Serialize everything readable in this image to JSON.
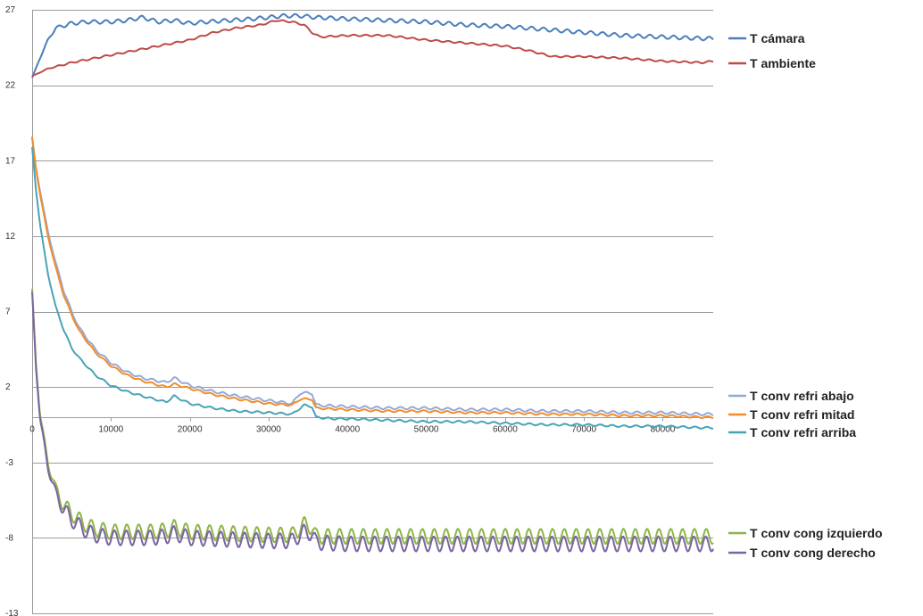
{
  "chart_data": {
    "type": "line",
    "title": "",
    "xlabel": "",
    "ylabel": "",
    "xlim": [
      0,
      86400
    ],
    "ylim": [
      -13,
      27
    ],
    "x_ticks": [
      0,
      10000,
      20000,
      30000,
      40000,
      50000,
      60000,
      70000,
      80000
    ],
    "x_tick_labels": [
      "0",
      "10000",
      "20000",
      "30000",
      "40000",
      "50000",
      "60000",
      "70000",
      "80000"
    ],
    "y_ticks": [
      27,
      22,
      17,
      12,
      7,
      2,
      -3,
      -8,
      -13
    ],
    "y_tick_labels": [
      "27",
      "22",
      "17",
      "12",
      "7",
      "2",
      "-3",
      "-8",
      "-13"
    ],
    "x_axis_at_y": 0,
    "grid": "horizontal",
    "legend_placement": "right",
    "series": [
      {
        "name": "T cámara",
        "color": "#4a7ebb",
        "x": [
          0,
          1000,
          2000,
          3000,
          5000,
          7000,
          10000,
          12000,
          14000,
          16000,
          18000,
          20000,
          22000,
          25000,
          28000,
          30000,
          32000,
          34000,
          36000,
          40000,
          45000,
          50000,
          55000,
          60000,
          65000,
          70000,
          75000,
          80000,
          85000,
          86400
        ],
        "y": [
          22.5,
          23.8,
          25.0,
          25.8,
          26.1,
          26.2,
          26.2,
          26.3,
          26.5,
          26.2,
          26.3,
          26.1,
          26.2,
          26.3,
          26.4,
          26.5,
          26.6,
          26.6,
          26.5,
          26.4,
          26.3,
          26.2,
          26.0,
          25.9,
          25.7,
          25.5,
          25.3,
          25.2,
          25.1,
          25.1
        ],
        "oscillation": 0.12
      },
      {
        "name": "T ambiente",
        "color": "#be4b48",
        "x": [
          0,
          2000,
          5000,
          8000,
          11000,
          14000,
          17000,
          20000,
          23000,
          26000,
          29000,
          31000,
          33000,
          34500,
          35500,
          36500,
          40000,
          45000,
          50000,
          55000,
          60000,
          63000,
          66000,
          70000,
          75000,
          80000,
          85000,
          86400
        ],
        "y": [
          22.6,
          23.1,
          23.5,
          23.8,
          24.1,
          24.4,
          24.7,
          25.0,
          25.5,
          25.8,
          26.0,
          26.3,
          26.2,
          26.0,
          25.5,
          25.2,
          25.3,
          25.3,
          25.0,
          24.8,
          24.6,
          24.3,
          23.9,
          23.9,
          23.8,
          23.6,
          23.5,
          23.6
        ],
        "oscillation": 0.05
      },
      {
        "name": "T conv refri abajo",
        "color": "#95a9d6",
        "x": [
          0,
          500,
          1000,
          2000,
          3000,
          4000,
          5000,
          6000,
          8000,
          10000,
          12000,
          14000,
          17000,
          18000,
          20000,
          23000,
          26000,
          30000,
          33000,
          34000,
          35500,
          36000,
          40000,
          45000,
          50000,
          55000,
          60000,
          65000,
          70000,
          75000,
          80000,
          85000,
          86400
        ],
        "y": [
          18.5,
          16.5,
          15.0,
          12.3,
          10.2,
          8.4,
          7.0,
          5.9,
          4.5,
          3.6,
          3.0,
          2.6,
          2.3,
          2.6,
          2.1,
          1.7,
          1.4,
          1.1,
          0.9,
          1.6,
          1.6,
          0.8,
          0.7,
          0.6,
          0.6,
          0.5,
          0.5,
          0.4,
          0.4,
          0.3,
          0.3,
          0.2,
          0.2
        ],
        "oscillation": 0.08
      },
      {
        "name": "T conv refri mitad",
        "color": "#f38c2b",
        "x": [
          0,
          500,
          1000,
          2000,
          3000,
          4000,
          5000,
          6000,
          8000,
          10000,
          12000,
          14000,
          17000,
          18000,
          20000,
          23000,
          26000,
          30000,
          33000,
          34000,
          35500,
          36000,
          40000,
          45000,
          50000,
          55000,
          60000,
          65000,
          70000,
          75000,
          80000,
          85000,
          86400
        ],
        "y": [
          18.6,
          16.4,
          14.8,
          12.0,
          9.9,
          8.1,
          6.8,
          5.7,
          4.3,
          3.4,
          2.8,
          2.4,
          2.0,
          2.2,
          1.9,
          1.5,
          1.2,
          0.9,
          0.8,
          1.2,
          1.2,
          0.6,
          0.5,
          0.4,
          0.4,
          0.3,
          0.3,
          0.2,
          0.2,
          0.1,
          0.1,
          0.0,
          0.0
        ],
        "oscillation": 0.06
      },
      {
        "name": "T conv refri arriba",
        "color": "#4aa3b5",
        "x": [
          0,
          500,
          1000,
          2000,
          3000,
          4000,
          5000,
          6000,
          8000,
          10000,
          12000,
          14000,
          17000,
          18000,
          20000,
          23000,
          26000,
          30000,
          33000,
          34500,
          35500,
          36000,
          38000,
          40000,
          45000,
          50000,
          55000,
          60000,
          65000,
          70000,
          75000,
          80000,
          85000,
          86400
        ],
        "y": [
          17.9,
          15.0,
          12.8,
          9.5,
          7.3,
          5.8,
          4.6,
          3.9,
          2.8,
          2.1,
          1.7,
          1.4,
          1.0,
          1.4,
          0.9,
          0.6,
          0.4,
          0.3,
          0.2,
          0.8,
          0.7,
          0.0,
          -0.1,
          -0.1,
          -0.2,
          -0.3,
          -0.3,
          -0.4,
          -0.5,
          -0.5,
          -0.6,
          -0.6,
          -0.7,
          -0.7
        ],
        "oscillation": 0.06
      },
      {
        "name": "T conv cong izquierdo",
        "color": "#8db548",
        "x": [
          0,
          500,
          1000,
          2000,
          3000,
          4000,
          5000,
          6000,
          7000,
          8000,
          10000,
          12000,
          15000,
          17000,
          18000,
          20000,
          25000,
          30000,
          33000,
          34500,
          35500,
          36000,
          40000,
          45000,
          50000,
          55000,
          60000,
          65000,
          70000,
          75000,
          80000,
          85000,
          86400
        ],
        "y": [
          8.5,
          3.5,
          0.2,
          -3.0,
          -4.8,
          -5.8,
          -6.4,
          -6.8,
          -7.2,
          -7.4,
          -7.6,
          -7.6,
          -7.6,
          -7.5,
          -7.3,
          -7.6,
          -7.7,
          -7.8,
          -7.8,
          -7.1,
          -7.3,
          -7.9,
          -7.9,
          -7.9,
          -7.9,
          -7.9,
          -7.9,
          -7.9,
          -7.9,
          -7.9,
          -7.9,
          -7.9,
          -7.9
        ],
        "oscillation": 0.5
      },
      {
        "name": "T conv cong derecho",
        "color": "#7b64a3",
        "x": [
          0,
          500,
          1000,
          2000,
          3000,
          4000,
          5000,
          6000,
          7000,
          8000,
          10000,
          12000,
          15000,
          17000,
          18000,
          20000,
          25000,
          30000,
          33000,
          34500,
          35500,
          36000,
          40000,
          45000,
          50000,
          55000,
          60000,
          65000,
          70000,
          75000,
          80000,
          85000,
          86400
        ],
        "y": [
          8.3,
          3.2,
          -0.1,
          -3.3,
          -5.1,
          -6.1,
          -6.8,
          -7.2,
          -7.6,
          -7.8,
          -8.0,
          -8.0,
          -8.0,
          -7.9,
          -7.7,
          -8.0,
          -8.1,
          -8.2,
          -8.2,
          -7.6,
          -7.7,
          -8.3,
          -8.4,
          -8.4,
          -8.4,
          -8.4,
          -8.4,
          -8.4,
          -8.4,
          -8.4,
          -8.4,
          -8.4,
          -8.4
        ],
        "oscillation": 0.5
      }
    ]
  }
}
